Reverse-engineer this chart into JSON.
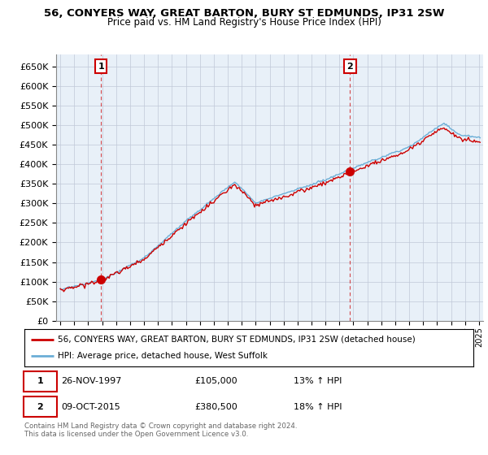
{
  "title": "56, CONYERS WAY, GREAT BARTON, BURY ST EDMUNDS, IP31 2SW",
  "subtitle": "Price paid vs. HM Land Registry's House Price Index (HPI)",
  "ylabel_ticks": [
    "£0",
    "£50K",
    "£100K",
    "£150K",
    "£200K",
    "£250K",
    "£300K",
    "£350K",
    "£400K",
    "£450K",
    "£500K",
    "£550K",
    "£600K",
    "£650K"
  ],
  "ytick_values": [
    0,
    50000,
    100000,
    150000,
    200000,
    250000,
    300000,
    350000,
    400000,
    450000,
    500000,
    550000,
    600000,
    650000
  ],
  "ylim": [
    0,
    680000
  ],
  "xlim_start": 1994.7,
  "xlim_end": 2025.3,
  "hpi_color": "#6baed6",
  "price_color": "#cc0000",
  "chart_bg": "#e8f0f8",
  "sale1_x": 1997.92,
  "sale1_y": 105000,
  "sale2_x": 2015.77,
  "sale2_y": 380500,
  "vline_color": "#cc0000",
  "legend_line1": "56, CONYERS WAY, GREAT BARTON, BURY ST EDMUNDS, IP31 2SW (detached house)",
  "legend_line2": "HPI: Average price, detached house, West Suffolk",
  "table_row1": [
    "1",
    "26-NOV-1997",
    "£105,000",
    "13% ↑ HPI"
  ],
  "table_row2": [
    "2",
    "09-OCT-2015",
    "£380,500",
    "18% ↑ HPI"
  ],
  "footnote": "Contains HM Land Registry data © Crown copyright and database right 2024.\nThis data is licensed under the Open Government Licence v3.0.",
  "grid_color": "#c0c8d8",
  "background_color": "#ffffff"
}
